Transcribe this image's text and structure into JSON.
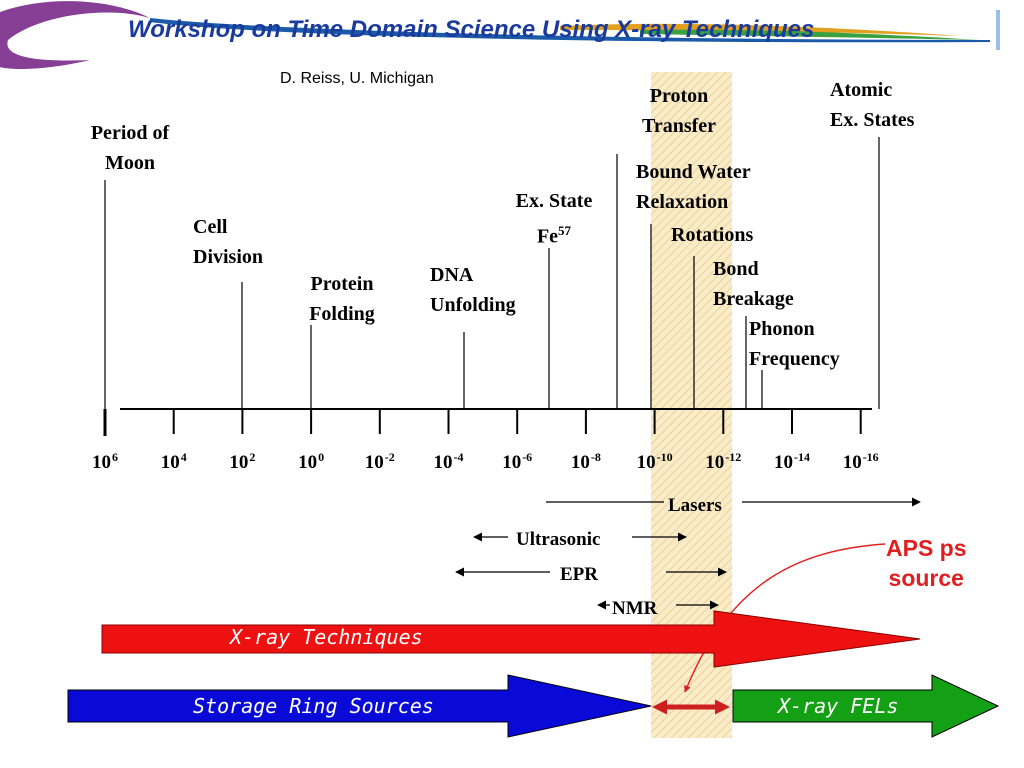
{
  "slide": {
    "title": "Workshop on Time Domain Science Using X-ray Techniques",
    "author": "D. Reiss, U. Michigan"
  },
  "axis": {
    "ticks": [
      {
        "base": "10",
        "exp": "6"
      },
      {
        "base": "10",
        "exp": "4"
      },
      {
        "base": "10",
        "exp": "2"
      },
      {
        "base": "10",
        "exp": "0"
      },
      {
        "base": "10",
        "exp": "-2"
      },
      {
        "base": "10",
        "exp": "-4"
      },
      {
        "base": "10",
        "exp": "-6"
      },
      {
        "base": "10",
        "exp": "-8"
      },
      {
        "base": "10",
        "exp": "-10"
      },
      {
        "base": "10",
        "exp": "-12"
      },
      {
        "base": "10",
        "exp": "-14"
      },
      {
        "base": "10",
        "exp": "-16"
      }
    ]
  },
  "events": {
    "moon": {
      "line1": "Period of",
      "line2": "Moon"
    },
    "cell": {
      "line1": "Cell",
      "line2": "Division"
    },
    "protein": {
      "line1": "Protein",
      "line2": "Folding"
    },
    "dna": {
      "line1": "DNA",
      "line2": "Unfolding"
    },
    "fe": {
      "line1": "Ex. State",
      "base": "Fe",
      "sup": "57"
    },
    "proton": {
      "line1": "Proton",
      "line2": "Transfer"
    },
    "water": {
      "line1": "Bound Water",
      "line2": "Relaxation"
    },
    "rotations": {
      "line1": "Rotations"
    },
    "bond": {
      "line1": "Bond",
      "line2": "Breakage"
    },
    "phonon": {
      "line1": "Phonon",
      "line2": "Frequency"
    },
    "atomic": {
      "line1": "Atomic",
      "line2": "Ex. States"
    }
  },
  "techniques": {
    "lasers": "Lasers",
    "ultrasonic": "Ultrasonic",
    "epr": "EPR",
    "nmr": "NMR"
  },
  "aps": {
    "line1": "APS ps",
    "line2": "source"
  },
  "arrows": {
    "xray": "X-ray Techniques",
    "storage": "Storage Ring Sources",
    "fels": "X-ray FELs"
  },
  "colors": {
    "title": "#1a3a9c",
    "band": "#f5deb3",
    "red": "#ee1111",
    "blue": "#0a0ad8",
    "green": "#14a014",
    "aps": "#e02020"
  }
}
